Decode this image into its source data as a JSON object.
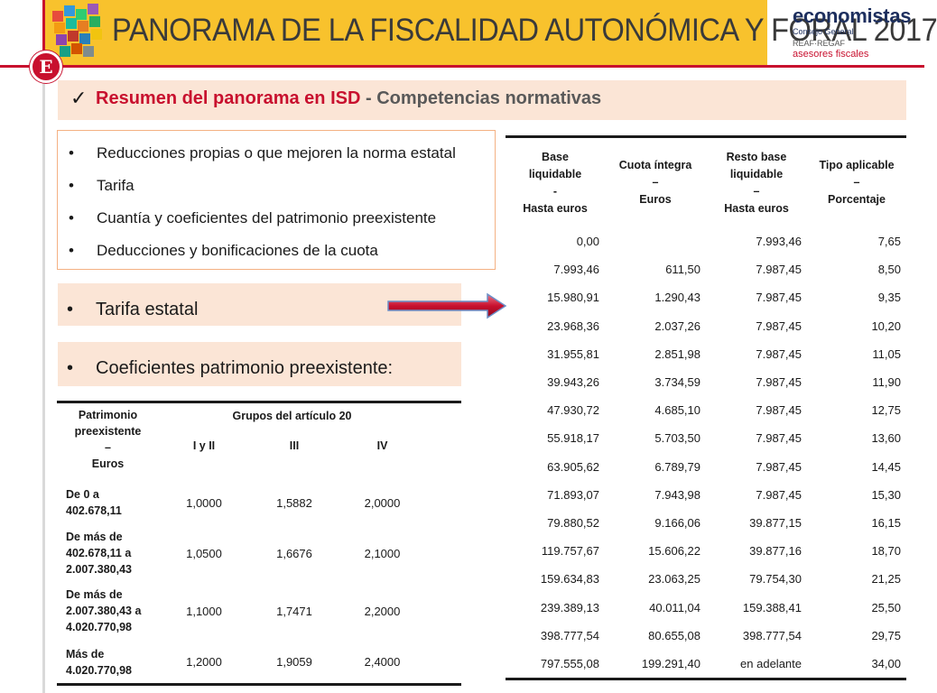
{
  "header": {
    "title": "PANORAMA DE LA FISCALIDAD AUTONÓMICA Y FORAL 2017",
    "brand_main": "economistas",
    "brand_sub": "Consejo General",
    "brand_sub2": "REAF·REGAF",
    "brand_sub3": "asesores fiscales",
    "logo_letter": "E",
    "accent_color": "#c8102e",
    "banner_color": "#f8c22d"
  },
  "section": {
    "check_icon": "✓",
    "title_main": "Resumen del panorama en ISD",
    "title_rest": " - Competencias normativas"
  },
  "bullets": [
    "Reducciones propias o que mejoren la norma estatal",
    "Tarifa",
    "Cuantía y coeficientes del patrimonio preexistente",
    "Deducciones y bonificaciones de la cuota"
  ],
  "pills": {
    "bullet": "•",
    "tarifa": "Tarifa estatal",
    "coef": "Coeficientes patrimonio preexistente:"
  },
  "coef_table": {
    "header_col1": [
      "Patrimonio",
      "preexistente",
      "–",
      "Euros"
    ],
    "header_group": "Grupos del artículo 20",
    "groups": [
      "I y II",
      "III",
      "IV"
    ],
    "rows": [
      {
        "label": [
          "De 0 a",
          "402.678,11"
        ],
        "values": [
          "1,0000",
          "1,5882",
          "2,0000"
        ]
      },
      {
        "label": [
          "De más de",
          "402.678,11 a",
          "2.007.380,43"
        ],
        "values": [
          "1,0500",
          "1,6676",
          "2,1000"
        ]
      },
      {
        "label": [
          "De más de",
          "2.007.380,43 a",
          "4.020.770,98"
        ],
        "values": [
          "1,1000",
          "1,7471",
          "2,2000"
        ]
      },
      {
        "label": [
          "Más de",
          "4.020.770,98"
        ],
        "values": [
          "1,2000",
          "1,9059",
          "2,4000"
        ]
      }
    ]
  },
  "tarifa_table": {
    "headers": [
      [
        "Base",
        "liquidable",
        "-",
        "Hasta euros"
      ],
      [
        "Cuota íntegra",
        "–",
        "Euros"
      ],
      [
        "Resto base",
        "liquidable",
        "–",
        "Hasta euros"
      ],
      [
        "Tipo aplicable",
        "–",
        "Porcentaje"
      ]
    ],
    "rows": [
      [
        "0,00",
        "",
        "7.993,46",
        "7,65"
      ],
      [
        "7.993,46",
        "611,50",
        "7.987,45",
        "8,50"
      ],
      [
        "15.980,91",
        "1.290,43",
        "7.987,45",
        "9,35"
      ],
      [
        "23.968,36",
        "2.037,26",
        "7.987,45",
        "10,20"
      ],
      [
        "31.955,81",
        "2.851,98",
        "7.987,45",
        "11,05"
      ],
      [
        "39.943,26",
        "3.734,59",
        "7.987,45",
        "11,90"
      ],
      [
        "47.930,72",
        "4.685,10",
        "7.987,45",
        "12,75"
      ],
      [
        "55.918,17",
        "5.703,50",
        "7.987,45",
        "13,60"
      ],
      [
        "63.905,62",
        "6.789,79",
        "7.987,45",
        "14,45"
      ],
      [
        "71.893,07",
        "7.943,98",
        "7.987,45",
        "15,30"
      ],
      [
        "79.880,52",
        "9.166,06",
        "39.877,15",
        "16,15"
      ],
      [
        "119.757,67",
        "15.606,22",
        "39.877,16",
        "18,70"
      ],
      [
        "159.634,83",
        "23.063,25",
        "79.754,30",
        "21,25"
      ],
      [
        "239.389,13",
        "40.011,04",
        "159.388,41",
        "25,50"
      ],
      [
        "398.777,54",
        "80.655,08",
        "398.777,54",
        "29,75"
      ],
      [
        "797.555,08",
        "199.291,40",
        "en adelante",
        "34,00"
      ]
    ]
  }
}
